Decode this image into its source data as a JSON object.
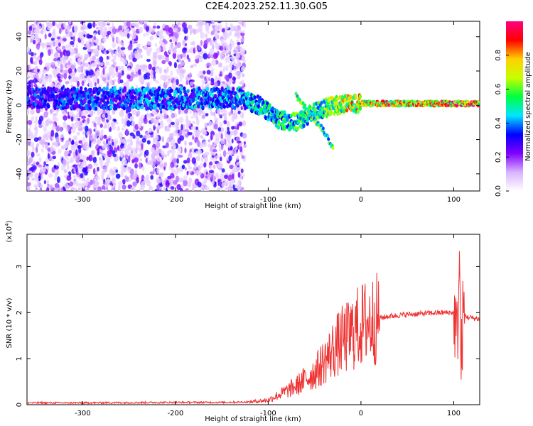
{
  "title": "C2E4.2023.252.11.30.G05",
  "chart_data": [
    {
      "type": "heatmap",
      "xlabel": "Height of straight line (km)",
      "ylabel": "Frequency (Hz)",
      "xlim": [
        -360,
        128
      ],
      "ylim": [
        -50,
        49
      ],
      "xticks": [
        -300,
        -200,
        -100,
        0,
        100
      ],
      "yticks": [
        -40,
        -20,
        0,
        20,
        40
      ],
      "colorbar": {
        "label": "Normalized spectral amplitude",
        "range": [
          0.0,
          1.0
        ],
        "ticks": [
          0.0,
          0.2,
          0.4,
          0.6,
          0.8
        ],
        "colors": [
          "#ffffff",
          "#d9b3ff",
          "#8000ff",
          "#0000ff",
          "#00e5ff",
          "#00ff40",
          "#c8ff00",
          "#ffd000",
          "#ff0000",
          "#ff0080"
        ]
      },
      "features": {
        "noise_region_x": [
          -360,
          -125
        ],
        "main_band": [
          [
            -360,
            4
          ],
          [
            -130,
            4
          ],
          [
            -110,
            0
          ],
          [
            -90,
            -8
          ],
          [
            -70,
            -10
          ],
          [
            -50,
            -4
          ],
          [
            -30,
            0
          ],
          [
            0,
            1
          ],
          [
            80,
            1
          ],
          [
            128,
            1
          ]
        ],
        "branch": [
          [
            -70,
            6
          ],
          [
            -55,
            -5
          ],
          [
            -40,
            -15
          ],
          [
            -30,
            -25
          ]
        ],
        "band_amplitude": [
          [
            -360,
            0.35
          ],
          [
            -130,
            0.45
          ],
          [
            -90,
            0.55
          ],
          [
            -40,
            0.6
          ],
          [
            0,
            0.85
          ],
          [
            80,
            0.9
          ],
          [
            128,
            0.9
          ]
        ]
      }
    },
    {
      "type": "line",
      "xlabel": "Height of straight line (km)",
      "ylabel": "SNR (10 * v/v)",
      "yunit": "(x10^4)",
      "xlim": [
        -360,
        128
      ],
      "ylim": [
        0,
        3.7
      ],
      "xticks": [
        -300,
        -200,
        -100,
        0,
        100
      ],
      "yticks": [
        0,
        1,
        2,
        3
      ],
      "series": [
        {
          "color": "#ee3333",
          "x": [
            -360,
            -300,
            -200,
            -150,
            -120,
            -100,
            -90,
            -80,
            -70,
            -60,
            -50,
            -45,
            -40,
            -35,
            -30,
            -25,
            -20,
            -15,
            -10,
            -5,
            0,
            5,
            10,
            20,
            30,
            50,
            70,
            90,
            100,
            104,
            106,
            108,
            110,
            115,
            128
          ],
          "y": [
            0.04,
            0.04,
            0.05,
            0.05,
            0.06,
            0.1,
            0.2,
            0.3,
            0.4,
            0.55,
            0.7,
            0.8,
            0.95,
            1.05,
            1.2,
            1.3,
            1.4,
            1.45,
            1.55,
            1.65,
            1.72,
            1.78,
            1.82,
            1.88,
            1.92,
            1.96,
            1.98,
            2.0,
            2.0,
            1.4,
            3.3,
            0.8,
            1.98,
            1.9,
            1.86
          ]
        }
      ]
    }
  ]
}
